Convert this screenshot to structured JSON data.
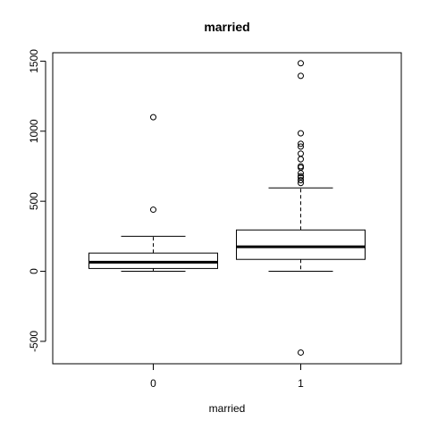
{
  "chart_data": {
    "type": "boxplot",
    "title": "married",
    "xlabel": "married",
    "ylabel": "",
    "ylim": [
      -660,
      1560
    ],
    "yticks": [
      -500,
      0,
      500,
      1000,
      1500
    ],
    "ytick_labels": [
      "-500",
      "0",
      "500",
      "1000",
      "1500"
    ],
    "categories": [
      "0",
      "1"
    ],
    "boxes": [
      {
        "category": "0",
        "whisker_low": 0,
        "q1": 20,
        "median": 65,
        "q3": 130,
        "whisker_high": 250,
        "outliers": [
          440,
          1100
        ]
      },
      {
        "category": "1",
        "whisker_low": 0,
        "q1": 85,
        "median": 175,
        "q3": 295,
        "whisker_high": 595,
        "outliers": [
          -580,
          630,
          650,
          670,
          680,
          700,
          740,
          750,
          800,
          840,
          890,
          910,
          985,
          1395,
          1485
        ]
      }
    ],
    "grid": false,
    "legend": "none"
  }
}
